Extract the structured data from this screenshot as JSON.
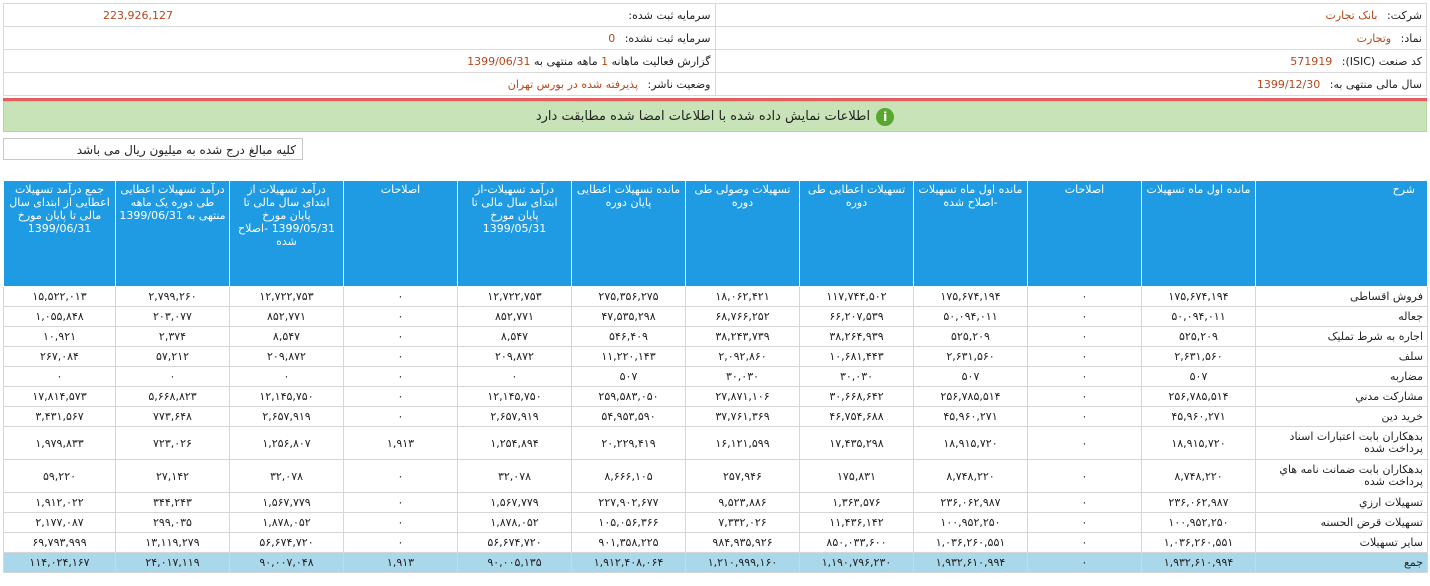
{
  "header": {
    "company_label": "شرکت:",
    "company_value": "بانک تجارت",
    "capital_label": "سرمایه ثبت شده:",
    "capital_value": "223,926,127",
    "symbol_label": "نماد:",
    "symbol_value": "وتجارت",
    "unreg_capital_label": "سرمایه ثبت نشده:",
    "unreg_capital_value": "0",
    "isic_label": "کد صنعت (ISIC):",
    "isic_value": "571919",
    "report_prefix": "گزارش فعالیت ماهانه",
    "report_months": "1",
    "report_middle": "ماهه منتهی به",
    "report_date": "1399/06/31",
    "fiscal_label": "سال مالی منتهی به:",
    "fiscal_value": "1399/12/30",
    "status_label": "وضعیت ناشر:",
    "status_value": "پذیرفته شده در بورس تهران"
  },
  "banner": {
    "icon": "info-check-icon",
    "message": "اطلاعات نمایش داده شده با اطلاعات امضا شده مطابقت دارد"
  },
  "unit_note": "کلیه مبالغ درج شده به میلیون ریال می باشد",
  "table": {
    "columns": [
      "شرح",
      "مانده اول ماه تسهیلات",
      "اصلاحات",
      "مانده اول ماه تسهیلات -اصلاح شده",
      "تسهیلات اعطایی طی دوره",
      "تسهیلات وصولی طی دوره",
      "مانده تسهیلات اعطایی پایان دوره",
      "درآمد تسهیلات-از ابتدای سال مالی تا پایان مورخ 1399/05/31",
      "اصلاحات",
      "درآمد تسهیلات از ابتدای سال مالی تا پایان مورخ 1399/05/31 -اصلاح شده",
      "درآمد تسهیلات اعطایی طی دوره یک ماهه منتهی به 1399/06/31",
      "جمع درآمد تسهیلات اعطایی از ابتدای سال مالی تا پایان مورخ 1399/06/31"
    ],
    "rows": [
      [
        "فروش اقساطی",
        "۱۷۵,۶۷۴,۱۹۴",
        "۰",
        "۱۷۵,۶۷۴,۱۹۴",
        "۱۱۷,۷۴۴,۵۰۲",
        "۱۸,۰۶۲,۴۲۱",
        "۲۷۵,۳۵۶,۲۷۵",
        "۱۲,۷۲۲,۷۵۳",
        "۰",
        "۱۲,۷۲۲,۷۵۳",
        "۲,۷۹۹,۲۶۰",
        "۱۵,۵۲۲,۰۱۳"
      ],
      [
        "جعاله",
        "۵۰,۰۹۴,۰۱۱",
        "۰",
        "۵۰,۰۹۴,۰۱۱",
        "۶۶,۲۰۷,۵۳۹",
        "۶۸,۷۶۶,۲۵۲",
        "۴۷,۵۳۵,۲۹۸",
        "۸۵۲,۷۷۱",
        "۰",
        "۸۵۲,۷۷۱",
        "۲۰۳,۰۷۷",
        "۱,۰۵۵,۸۴۸"
      ],
      [
        "اجاره به شرط تمليک",
        "۵۲۵,۲۰۹",
        "۰",
        "۵۲۵,۲۰۹",
        "۳۸,۲۶۴,۹۳۹",
        "۳۸,۲۴۳,۷۳۹",
        "۵۴۶,۴۰۹",
        "۸,۵۴۷",
        "۰",
        "۸,۵۴۷",
        "۲,۳۷۴",
        "۱۰,۹۲۱"
      ],
      [
        "سلف",
        "۲,۶۳۱,۵۶۰",
        "۰",
        "۲,۶۳۱,۵۶۰",
        "۱۰,۶۸۱,۴۴۳",
        "۲,۰۹۲,۸۶۰",
        "۱۱,۲۲۰,۱۴۳",
        "۲۰۹,۸۷۲",
        "۰",
        "۲۰۹,۸۷۲",
        "۵۷,۲۱۲",
        "۲۶۷,۰۸۴"
      ],
      [
        "مضاربه",
        "۵۰۷",
        "۰",
        "۵۰۷",
        "۳۰,۰۳۰",
        "۳۰,۰۳۰",
        "۵۰۷",
        "۰",
        "۰",
        "۰",
        "۰",
        "۰"
      ],
      [
        "مشارکت مدني",
        "۲۵۶,۷۸۵,۵۱۴",
        "۰",
        "۲۵۶,۷۸۵,۵۱۴",
        "۳۰,۶۶۸,۶۴۲",
        "۲۷,۸۷۱,۱۰۶",
        "۲۵۹,۵۸۳,۰۵۰",
        "۱۲,۱۴۵,۷۵۰",
        "۰",
        "۱۲,۱۴۵,۷۵۰",
        "۵,۶۶۸,۸۲۳",
        "۱۷,۸۱۴,۵۷۳"
      ],
      [
        "خريد دين",
        "۴۵,۹۶۰,۲۷۱",
        "۰",
        "۴۵,۹۶۰,۲۷۱",
        "۴۶,۷۵۴,۶۸۸",
        "۳۷,۷۶۱,۳۶۹",
        "۵۴,۹۵۳,۵۹۰",
        "۲,۶۵۷,۹۱۹",
        "۰",
        "۲,۶۵۷,۹۱۹",
        "۷۷۳,۶۴۸",
        "۳,۴۳۱,۵۶۷"
      ],
      [
        "بدهکاران بابت اعتبارات اسناد پرداخت شده",
        "۱۸,۹۱۵,۷۲۰",
        "۰",
        "۱۸,۹۱۵,۷۲۰",
        "۱۷,۴۳۵,۲۹۸",
        "۱۶,۱۲۱,۵۹۹",
        "۲۰,۲۲۹,۴۱۹",
        "۱,۲۵۴,۸۹۴",
        "۱,۹۱۳",
        "۱,۲۵۶,۸۰۷",
        "۷۲۳,۰۲۶",
        "۱,۹۷۹,۸۳۳"
      ],
      [
        "بدهکاران بابت ضمانت نامه هاي پرداخت شده",
        "۸,۷۴۸,۲۲۰",
        "۰",
        "۸,۷۴۸,۲۲۰",
        "۱۷۵,۸۳۱",
        "۲۵۷,۹۴۶",
        "۸,۶۶۶,۱۰۵",
        "۳۲,۰۷۸",
        "۰",
        "۳۲,۰۷۸",
        "۲۷,۱۴۲",
        "۵۹,۲۲۰"
      ],
      [
        "تسهیلات ارزي",
        "۲۳۶,۰۶۲,۹۸۷",
        "۰",
        "۲۳۶,۰۶۲,۹۸۷",
        "۱,۳۶۳,۵۷۶",
        "۹,۵۲۳,۸۸۶",
        "۲۲۷,۹۰۲,۶۷۷",
        "۱,۵۶۷,۷۷۹",
        "۰",
        "۱,۵۶۷,۷۷۹",
        "۳۴۴,۲۴۳",
        "۱,۹۱۲,۰۲۲"
      ],
      [
        "تسهیلات قرض الحسنه",
        "۱۰۰,۹۵۲,۲۵۰",
        "۰",
        "۱۰۰,۹۵۲,۲۵۰",
        "۱۱,۴۳۶,۱۴۲",
        "۷,۳۳۲,۰۲۶",
        "۱۰۵,۰۵۶,۳۶۶",
        "۱,۸۷۸,۰۵۲",
        "۰",
        "۱,۸۷۸,۰۵۲",
        "۲۹۹,۰۳۵",
        "۲,۱۷۷,۰۸۷"
      ],
      [
        "سایر تسهیلات",
        "۱,۰۳۶,۲۶۰,۵۵۱",
        "۰",
        "۱,۰۳۶,۲۶۰,۵۵۱",
        "۸۵۰,۰۳۳,۶۰۰",
        "۹۸۴,۹۳۵,۹۲۶",
        "۹۰۱,۳۵۸,۲۲۵",
        "۵۶,۶۷۴,۷۲۰",
        "۰",
        "۵۶,۶۷۴,۷۲۰",
        "۱۳,۱۱۹,۲۷۹",
        "۶۹,۷۹۳,۹۹۹"
      ]
    ],
    "total": [
      "جمع",
      "۱,۹۳۲,۶۱۰,۹۹۴",
      "۰",
      "۱,۹۳۲,۶۱۰,۹۹۴",
      "۱,۱۹۰,۷۹۶,۲۳۰",
      "۱,۲۱۰,۹۹۹,۱۶۰",
      "۱,۹۱۲,۴۰۸,۰۶۴",
      "۹۰,۰۰۵,۱۳۵",
      "۱,۹۱۳",
      "۹۰,۰۰۷,۰۴۸",
      "۲۴,۰۱۷,۱۱۹",
      "۱۱۴,۰۲۴,۱۶۷"
    ],
    "tall_rows": [
      7,
      8
    ]
  }
}
